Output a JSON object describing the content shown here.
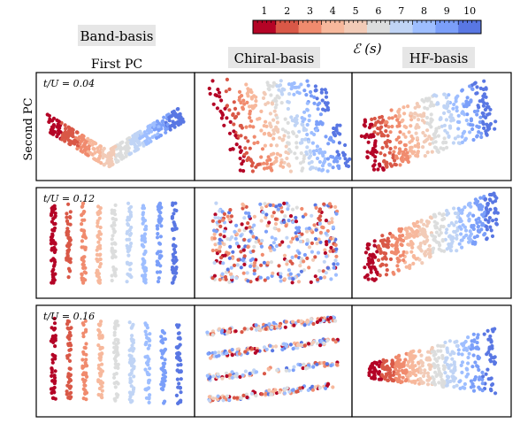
{
  "figure": {
    "column_headers": [
      "Band-basis",
      "Chiral-basis",
      "HF-basis"
    ],
    "xlabel": "First PC",
    "ylabel": "Second PC",
    "row_labels": [
      "t/U = 0.04",
      "t/U = 0.12",
      "t/U = 0.16"
    ]
  },
  "colorbar": {
    "label": "ℰ (s)",
    "ticks": [
      "1",
      "2",
      "3",
      "4",
      "5",
      "6",
      "7",
      "8",
      "9",
      "10"
    ],
    "colors": [
      "#b40426",
      "#d95847",
      "#f08b6e",
      "#f7b89c",
      "#f2cbb7",
      "#dcdddd",
      "#c0d4f5",
      "#9ebeff",
      "#7b9ff9",
      "#5977e3"
    ]
  },
  "chart_data": {
    "type": "scatter",
    "description_axes": "PCA projection, axes unlabeled numerically",
    "color_variable": "ℰ (s)",
    "color_range": [
      1,
      10
    ],
    "panels": [
      {
        "row": "t/U = 0.04",
        "column": "Band-basis",
        "pattern": "curved bands forming a U shape, energy increasing left to right"
      },
      {
        "row": "t/U = 0.04",
        "column": "Chiral-basis",
        "pattern": "diagonal stripes, energy increasing left to right"
      },
      {
        "row": "t/U = 0.04",
        "column": "HF-basis",
        "pattern": "diagonal stripes descending, energy increasing left to right"
      },
      {
        "row": "t/U = 0.12",
        "column": "Band-basis",
        "pattern": "vertical stripes, energy increasing left to right"
      },
      {
        "row": "t/U = 0.12",
        "column": "Chiral-basis",
        "pattern": "overlapping diffuse cloud, mixed energies"
      },
      {
        "row": "t/U = 0.12",
        "column": "HF-basis",
        "pattern": "diagonal band, energy increasing toward upper right"
      },
      {
        "row": "t/U = 0.16",
        "column": "Band-basis",
        "pattern": "vertical stripes, energy increasing left to right"
      },
      {
        "row": "t/U = 0.16",
        "column": "Chiral-basis",
        "pattern": "tilted interleaved stripes, mixed energies"
      },
      {
        "row": "t/U = 0.16",
        "column": "HF-basis",
        "pattern": "wedge shape, energy increasing to the right"
      }
    ]
  }
}
